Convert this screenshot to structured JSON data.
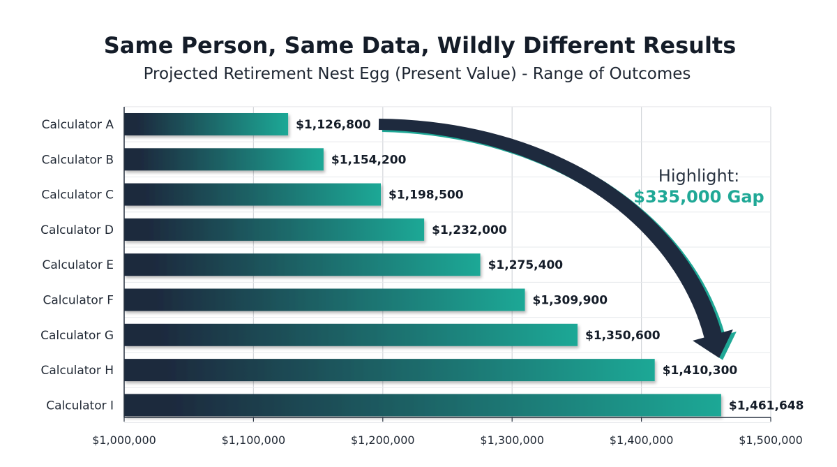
{
  "chart_data": {
    "type": "bar",
    "orientation": "horizontal",
    "title": "Same Person, Same Data, Wildly Different Results",
    "subtitle": "Projected Retirement Nest Egg (Present Value) - Range of Outcomes",
    "categories": [
      "Calculator A",
      "Calculator B",
      "Calculator C",
      "Calculator D",
      "Calculator E",
      "Calculator F",
      "Calculator G",
      "Calculator H",
      "Calculator I"
    ],
    "values": [
      1126800,
      1154200,
      1198500,
      1232000,
      1275400,
      1309900,
      1350600,
      1410300,
      1461648
    ],
    "data_labels": [
      "$1,126,800",
      "$1,154,200",
      "$1,198,500",
      "$1,232,000",
      "$1,275,400",
      "$1,309,900",
      "$1,350,600",
      "$1,410,300",
      "$1,461,648"
    ],
    "xlim": [
      1000000,
      1500000
    ],
    "x_ticks": [
      1000000,
      1100000,
      1200000,
      1300000,
      1400000,
      1500000
    ],
    "x_tick_labels": [
      "$1,000,000",
      "$1,100,000",
      "$1,200,000",
      "$1,300,000",
      "$1,400,000",
      "$1,500,000"
    ],
    "grid": true,
    "xlabel": "",
    "ylabel": "",
    "annotation": {
      "line1": "Highlight:",
      "line2": "$335,000 Gap",
      "arrow_from": "Calculator A",
      "arrow_to": "Calculator I"
    },
    "colors": {
      "bar_dark": "#1e2a3e",
      "bar_light": "#1fa896",
      "arrow": "#1e2a3e",
      "accent": "#1fa896",
      "grid": "#d3d6da"
    }
  }
}
